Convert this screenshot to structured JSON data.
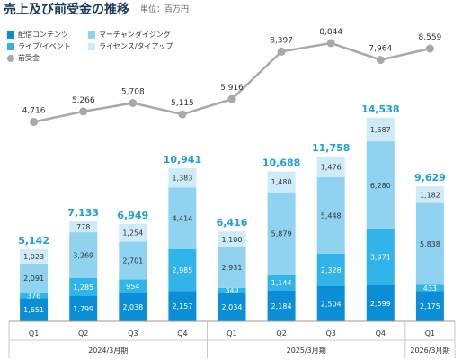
{
  "header": {
    "title": "売上及び前受金の推移",
    "unit": "単位：百万円"
  },
  "legend": [
    {
      "label": "配信コンテンツ",
      "color": "#0a8fd6",
      "shape": "square"
    },
    {
      "label": "マーチャンダイジング",
      "color": "#8fd3f0",
      "shape": "square"
    },
    {
      "label": "ライブ/イベント",
      "color": "#30b4ea",
      "shape": "square"
    },
    {
      "label": "ライセンス/タイアップ",
      "color": "#cdebf8",
      "shape": "square"
    },
    {
      "label": "前受金",
      "color": "#a8a8a8",
      "shape": "circle"
    }
  ],
  "chart_data": {
    "type": "bar",
    "stacked": true,
    "categories": [
      "Q1",
      "Q2",
      "Q3",
      "Q4",
      "Q1",
      "Q2",
      "Q3",
      "Q4",
      "Q1"
    ],
    "groups": [
      {
        "label": "2024/3月期",
        "count": 4
      },
      {
        "label": "2025/3月期",
        "count": 4
      },
      {
        "label": "2026/3月期",
        "count": 1
      }
    ],
    "series": [
      {
        "name": "配信コンテンツ",
        "color": "#0a8fd6",
        "values": [
          1651,
          1799,
          2038,
          2157,
          2034,
          2184,
          2504,
          2599,
          2175
        ]
      },
      {
        "name": "ライブ/イベント",
        "color": "#30b4ea",
        "values": [
          376,
          1285,
          954,
          2985,
          349,
          1144,
          2328,
          3971,
          433
        ]
      },
      {
        "name": "マーチャンダイジング",
        "color": "#8fd3f0",
        "values": [
          2091,
          3269,
          2701,
          4414,
          2931,
          5879,
          5448,
          6280,
          5838
        ]
      },
      {
        "name": "ライセンス/タイアップ",
        "color": "#cdebf8",
        "values": [
          1023,
          778,
          1254,
          1383,
          1100,
          1480,
          1476,
          1687,
          1182
        ]
      }
    ],
    "totals": [
      5142,
      7133,
      6949,
      10941,
      6416,
      10688,
      11758,
      14538,
      9629
    ],
    "line": {
      "name": "前受金",
      "color": "#a8a8a8",
      "values": [
        4716,
        5266,
        5708,
        5115,
        5916,
        8397,
        8844,
        7964,
        8559
      ]
    },
    "total_label_color": "#1aa0e0"
  }
}
